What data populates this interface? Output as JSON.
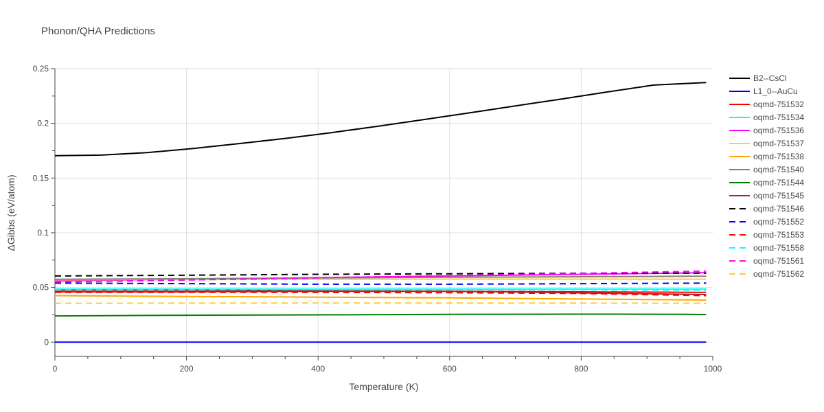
{
  "chart_data": {
    "type": "line",
    "title": "Phonon/QHA Predictions",
    "xlabel": "Temperature (K)",
    "ylabel": "ΔGibbs (eV/atom)",
    "xlim": [
      0,
      1000
    ],
    "ylim": [
      -0.013,
      0.25
    ],
    "x_ticks": [
      0,
      200,
      400,
      600,
      800,
      1000
    ],
    "x_tick_labels": [
      "0",
      "200",
      "400",
      "600",
      "800",
      "1000"
    ],
    "y_ticks": [
      0,
      0.05,
      0.1,
      0.15,
      0.2,
      0.25
    ],
    "y_tick_labels": [
      "0",
      "0.05",
      "0.1",
      "0.15",
      "0.2",
      "0.25"
    ],
    "grid": true,
    "legend_position": "right",
    "series": [
      {
        "name": "B2--CsCl",
        "color": "#000000",
        "dash": "solid",
        "x": [
          0,
          70,
          140,
          210,
          280,
          350,
          420,
          490,
          560,
          630,
          700,
          770,
          840,
          910,
          990
        ],
        "y": [
          0.1705,
          0.171,
          0.1733,
          0.177,
          0.1815,
          0.1862,
          0.1915,
          0.1973,
          0.2034,
          0.2096,
          0.216,
          0.2222,
          0.2287,
          0.235,
          0.2373
        ]
      },
      {
        "name": "L1_0--AuCu",
        "color": "#0000ff",
        "dash": "solid",
        "x": [
          0,
          990
        ],
        "y": [
          0.0,
          0.0
        ]
      },
      {
        "name": "oqmd-751532",
        "color": "#ff0000",
        "dash": "solid",
        "x": [
          0,
          200,
          400,
          600,
          800,
          990
        ],
        "y": [
          0.046,
          0.046,
          0.0465,
          0.0465,
          0.046,
          0.0455
        ]
      },
      {
        "name": "oqmd-751534",
        "color": "#00ffff",
        "dash": "solid",
        "x": [
          0,
          200,
          400,
          600,
          800,
          990
        ],
        "y": [
          0.0485,
          0.0485,
          0.0485,
          0.0485,
          0.0485,
          0.0485
        ]
      },
      {
        "name": "oqmd-751536",
        "color": "#ff00ff",
        "dash": "solid",
        "x": [
          0,
          200,
          400,
          600,
          800,
          990
        ],
        "y": [
          0.056,
          0.0575,
          0.059,
          0.0605,
          0.062,
          0.0635
        ]
      },
      {
        "name": "oqmd-751537",
        "color": "#ffcc33",
        "dash": "solid",
        "x": [
          0,
          200,
          400,
          600,
          800,
          990
        ],
        "y": [
          0.057,
          0.0572,
          0.0574,
          0.0576,
          0.0576,
          0.0575
        ]
      },
      {
        "name": "oqmd-751538",
        "color": "#ffa500",
        "dash": "solid",
        "x": [
          0,
          200,
          400,
          600,
          800,
          990
        ],
        "y": [
          0.0425,
          0.0418,
          0.0412,
          0.0405,
          0.0395,
          0.0385
        ]
      },
      {
        "name": "oqmd-751540",
        "color": "#808080",
        "dash": "solid",
        "x": [
          0,
          200,
          400,
          600,
          800,
          990
        ],
        "y": [
          0.0575,
          0.058,
          0.0587,
          0.0593,
          0.0598,
          0.0603
        ]
      },
      {
        "name": "oqmd-751544",
        "color": "#008000",
        "dash": "solid",
        "x": [
          0,
          200,
          400,
          600,
          800,
          960,
          990
        ],
        "y": [
          0.024,
          0.0246,
          0.025,
          0.0254,
          0.0256,
          0.0255,
          0.0252
        ]
      },
      {
        "name": "oqmd-751545",
        "color": "#a52a2a",
        "dash": "solid",
        "x": [
          0,
          200,
          400,
          600,
          800,
          990
        ],
        "y": [
          0.0475,
          0.0475,
          0.047,
          0.0465,
          0.045,
          0.0435
        ]
      },
      {
        "name": "oqmd-751546",
        "color": "#000000",
        "dash": "dash",
        "x": [
          0,
          200,
          400,
          600,
          800,
          990
        ],
        "y": [
          0.0605,
          0.0612,
          0.062,
          0.0625,
          0.063,
          0.063
        ]
      },
      {
        "name": "oqmd-751552",
        "color": "#0000ff",
        "dash": "dash",
        "x": [
          0,
          200,
          400,
          600,
          800,
          990
        ],
        "y": [
          0.054,
          0.0535,
          0.053,
          0.053,
          0.0535,
          0.054
        ]
      },
      {
        "name": "oqmd-751553",
        "color": "#ff0000",
        "dash": "dash",
        "x": [
          0,
          200,
          400,
          600,
          800,
          990
        ],
        "y": [
          0.0455,
          0.0455,
          0.0455,
          0.0452,
          0.0445,
          0.0425
        ]
      },
      {
        "name": "oqmd-751558",
        "color": "#00ffff",
        "dash": "dash",
        "x": [
          0,
          200,
          400,
          600,
          800,
          990
        ],
        "y": [
          0.048,
          0.048,
          0.048,
          0.048,
          0.048,
          0.0475
        ]
      },
      {
        "name": "oqmd-751561",
        "color": "#ff00ff",
        "dash": "dash",
        "x": [
          0,
          200,
          400,
          600,
          800,
          990
        ],
        "y": [
          0.055,
          0.0568,
          0.0588,
          0.0608,
          0.0628,
          0.065
        ]
      },
      {
        "name": "oqmd-751562",
        "color": "#ffcc33",
        "dash": "dash",
        "x": [
          0,
          200,
          400,
          600,
          800,
          990
        ],
        "y": [
          0.0355,
          0.0357,
          0.0358,
          0.0358,
          0.0357,
          0.0355
        ]
      }
    ]
  }
}
